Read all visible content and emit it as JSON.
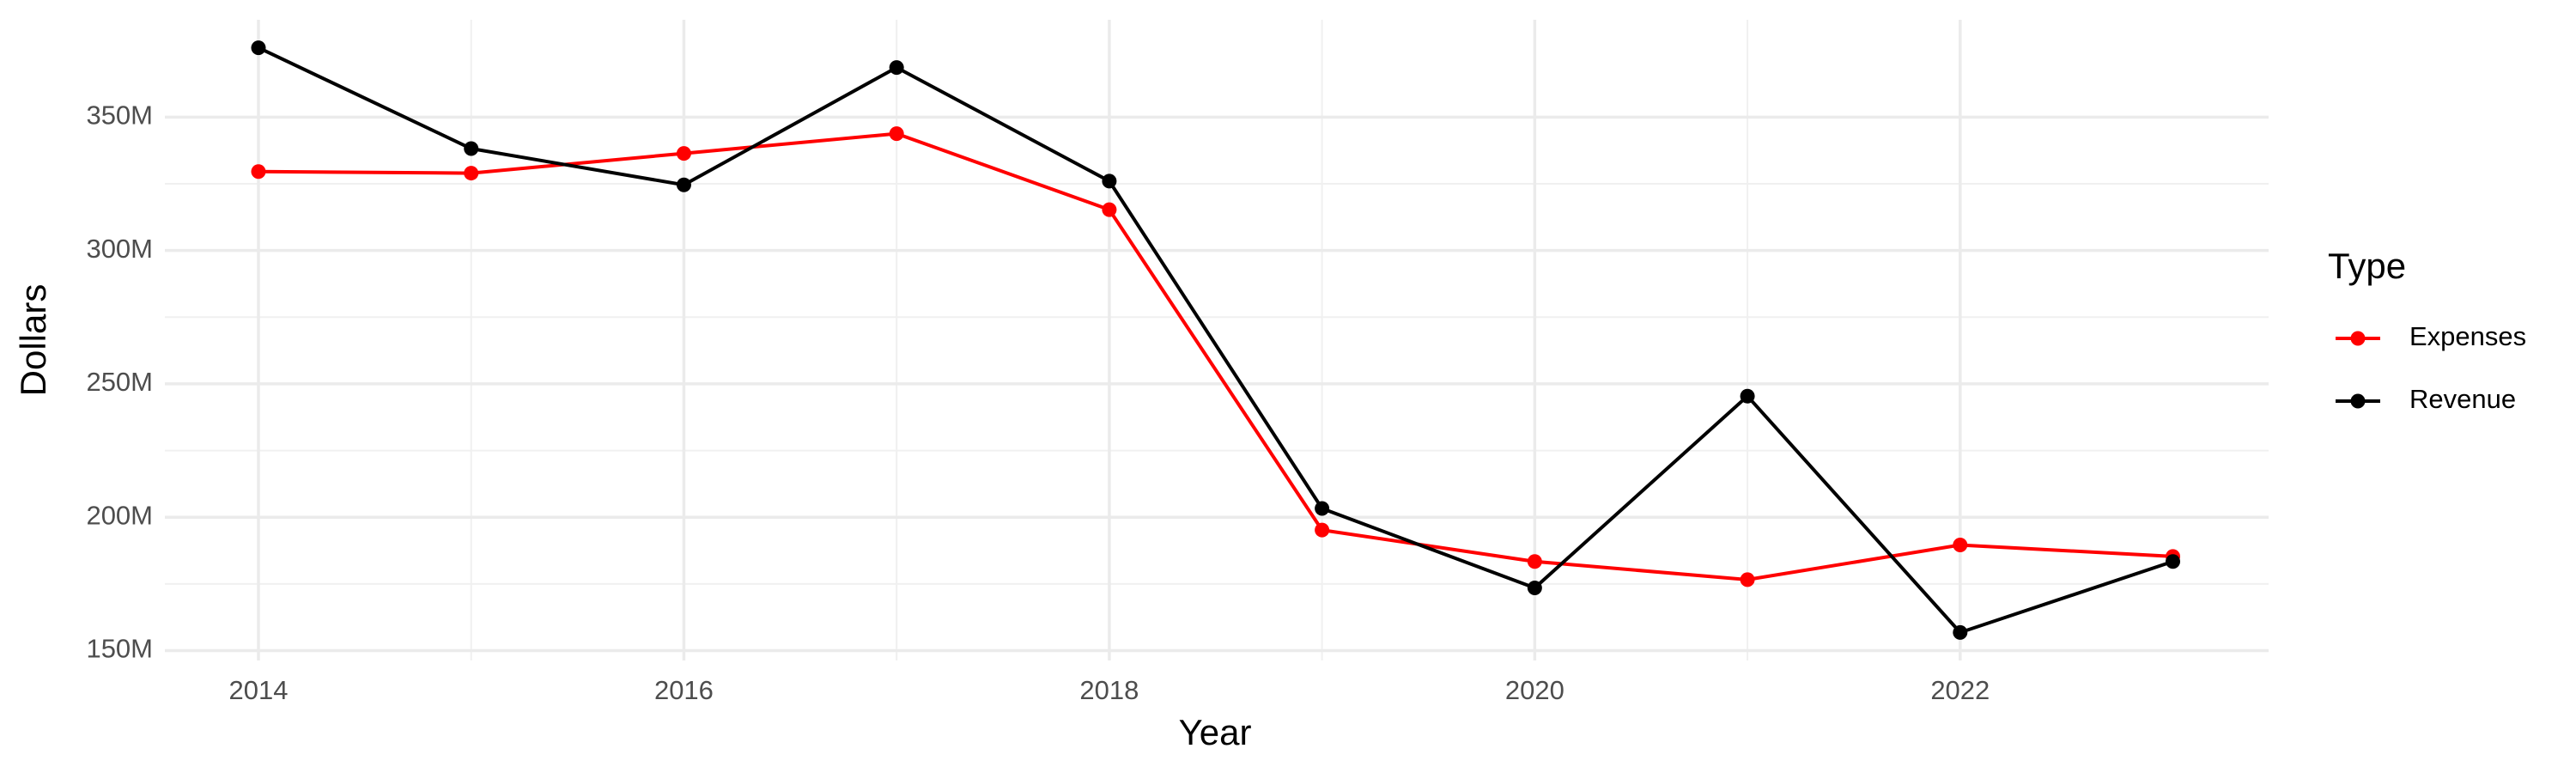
{
  "chart_data": {
    "type": "line",
    "x_label": "Year",
    "y_label": "Dollars",
    "legend_title": "Type",
    "legend_position": "right",
    "grid": true,
    "x": [
      2014,
      2015,
      2016,
      2017,
      2018,
      2019,
      2020,
      2021,
      2022,
      2023
    ],
    "series": [
      {
        "name": "Expenses",
        "color": "#ff0000",
        "values": [
          329600000,
          329000000,
          336400000,
          343800000,
          315300000,
          195200000,
          183400000,
          176600000,
          189600000,
          185300000
        ]
      },
      {
        "name": "Revenue",
        "color": "#000000",
        "values": [
          376000000,
          338200000,
          324600000,
          368600000,
          326000000,
          203300000,
          173500000,
          245400000,
          156800000,
          183400000
        ]
      }
    ],
    "xlim": [
      2013.56,
      2023.45
    ],
    "xticks": [
      2014,
      2016,
      2018,
      2020,
      2022
    ],
    "ylim": [
      146300000,
      386500000
    ],
    "yticks": [
      {
        "value": 150000000,
        "label": "150M"
      },
      {
        "value": 200000000,
        "label": "200M"
      },
      {
        "value": 250000000,
        "label": "250M"
      },
      {
        "value": 300000000,
        "label": "300M"
      },
      {
        "value": 350000000,
        "label": "350M"
      }
    ]
  }
}
